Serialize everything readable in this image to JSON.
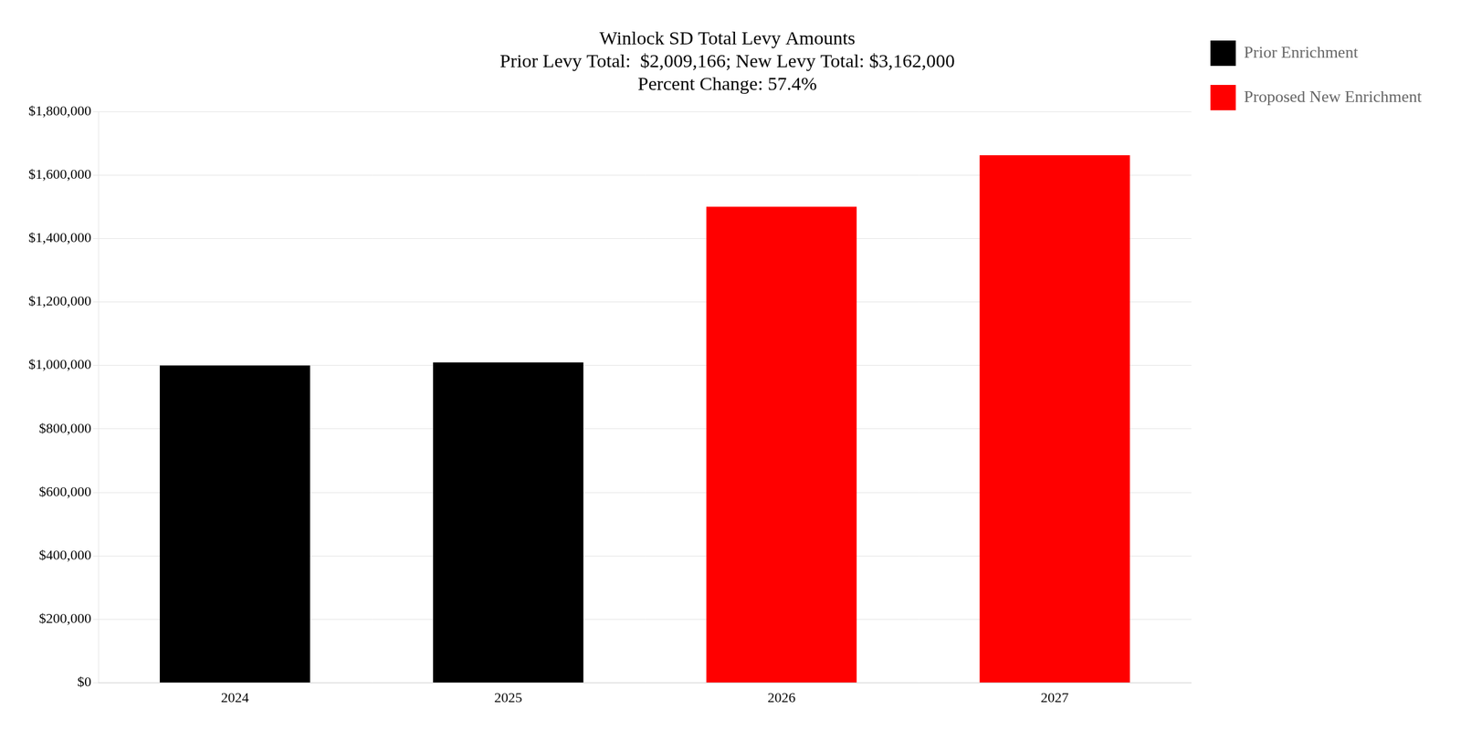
{
  "chart_data": {
    "type": "bar",
    "title": "Winlock SD Total Levy Amounts\nPrior Levy Total:  $2,009,166; New Levy Total: $3,162,000\nPercent Change: 57.4%",
    "categories": [
      "2024",
      "2025",
      "2026",
      "2027"
    ],
    "series": [
      {
        "name": "Prior Enrichment",
        "color": "#000000",
        "values": [
          1000000,
          1009166,
          null,
          null
        ]
      },
      {
        "name": "Proposed New Enrichment",
        "color": "#ff0000",
        "values": [
          null,
          null,
          1500000,
          1662000
        ]
      }
    ],
    "ylim": [
      0,
      1800000
    ],
    "yticks": [
      {
        "value": 0,
        "label": "$0"
      },
      {
        "value": 200000,
        "label": "$200,000"
      },
      {
        "value": 400000,
        "label": "$400,000"
      },
      {
        "value": 600000,
        "label": "$600,000"
      },
      {
        "value": 800000,
        "label": "$800,000"
      },
      {
        "value": 1000000,
        "label": "$1,000,000"
      },
      {
        "value": 1200000,
        "label": "$1,200,000"
      },
      {
        "value": 1400000,
        "label": "$1,400,000"
      },
      {
        "value": 1600000,
        "label": "$1,600,000"
      },
      {
        "value": 1800000,
        "label": "$1,800,000"
      }
    ],
    "grid": true,
    "legend": "right"
  }
}
